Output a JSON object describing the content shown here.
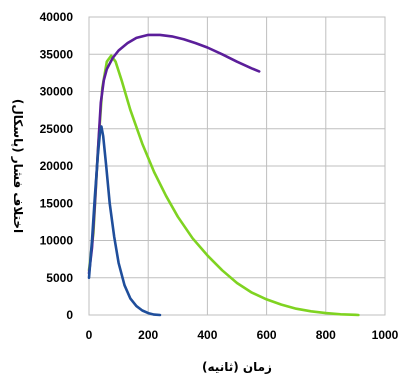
{
  "chart_data": {
    "type": "line",
    "xlabel": "زمان (ثانیه)",
    "ylabel": "اختلاف فشار (پاسکال)",
    "xlim": [
      0,
      1000
    ],
    "ylim": [
      0,
      40000
    ],
    "x_ticks": [
      0,
      200,
      400,
      600,
      800,
      1000
    ],
    "y_ticks": [
      0,
      5000,
      10000,
      15000,
      20000,
      25000,
      30000,
      35000,
      40000
    ],
    "grid": true,
    "legend": "none",
    "series": [
      {
        "color": "#7fd321",
        "points": [
          [
            0,
            6000
          ],
          [
            15,
            11000
          ],
          [
            30,
            22000
          ],
          [
            45,
            30500
          ],
          [
            60,
            34000
          ],
          [
            75,
            34800
          ],
          [
            90,
            34000
          ],
          [
            110,
            31500
          ],
          [
            140,
            27500
          ],
          [
            180,
            23000
          ],
          [
            220,
            19200
          ],
          [
            260,
            16000
          ],
          [
            300,
            13200
          ],
          [
            350,
            10300
          ],
          [
            400,
            8000
          ],
          [
            450,
            6000
          ],
          [
            500,
            4300
          ],
          [
            550,
            3000
          ],
          [
            600,
            2100
          ],
          [
            650,
            1400
          ],
          [
            700,
            850
          ],
          [
            750,
            500
          ],
          [
            800,
            250
          ],
          [
            850,
            100
          ],
          [
            900,
            30
          ],
          [
            910,
            0
          ]
        ]
      },
      {
        "color": "#5b1e9a",
        "points": [
          [
            0,
            5600
          ],
          [
            10,
            9000
          ],
          [
            20,
            15000
          ],
          [
            30,
            22000
          ],
          [
            40,
            28500
          ],
          [
            50,
            31500
          ],
          [
            60,
            33000
          ],
          [
            80,
            34500
          ],
          [
            100,
            35500
          ],
          [
            130,
            36500
          ],
          [
            160,
            37200
          ],
          [
            200,
            37600
          ],
          [
            240,
            37600
          ],
          [
            280,
            37400
          ],
          [
            320,
            37000
          ],
          [
            360,
            36500
          ],
          [
            400,
            35900
          ],
          [
            450,
            35000
          ],
          [
            500,
            34000
          ],
          [
            550,
            33100
          ],
          [
            575,
            32700
          ]
        ]
      },
      {
        "color": "#1f4e9b",
        "points": [
          [
            0,
            5000
          ],
          [
            10,
            10000
          ],
          [
            20,
            16000
          ],
          [
            30,
            21500
          ],
          [
            37,
            24500
          ],
          [
            42,
            25300
          ],
          [
            48,
            24000
          ],
          [
            58,
            20000
          ],
          [
            70,
            15000
          ],
          [
            85,
            10500
          ],
          [
            100,
            7000
          ],
          [
            120,
            4000
          ],
          [
            140,
            2200
          ],
          [
            160,
            1200
          ],
          [
            180,
            600
          ],
          [
            200,
            250
          ],
          [
            220,
            50
          ],
          [
            240,
            0
          ]
        ]
      }
    ]
  }
}
